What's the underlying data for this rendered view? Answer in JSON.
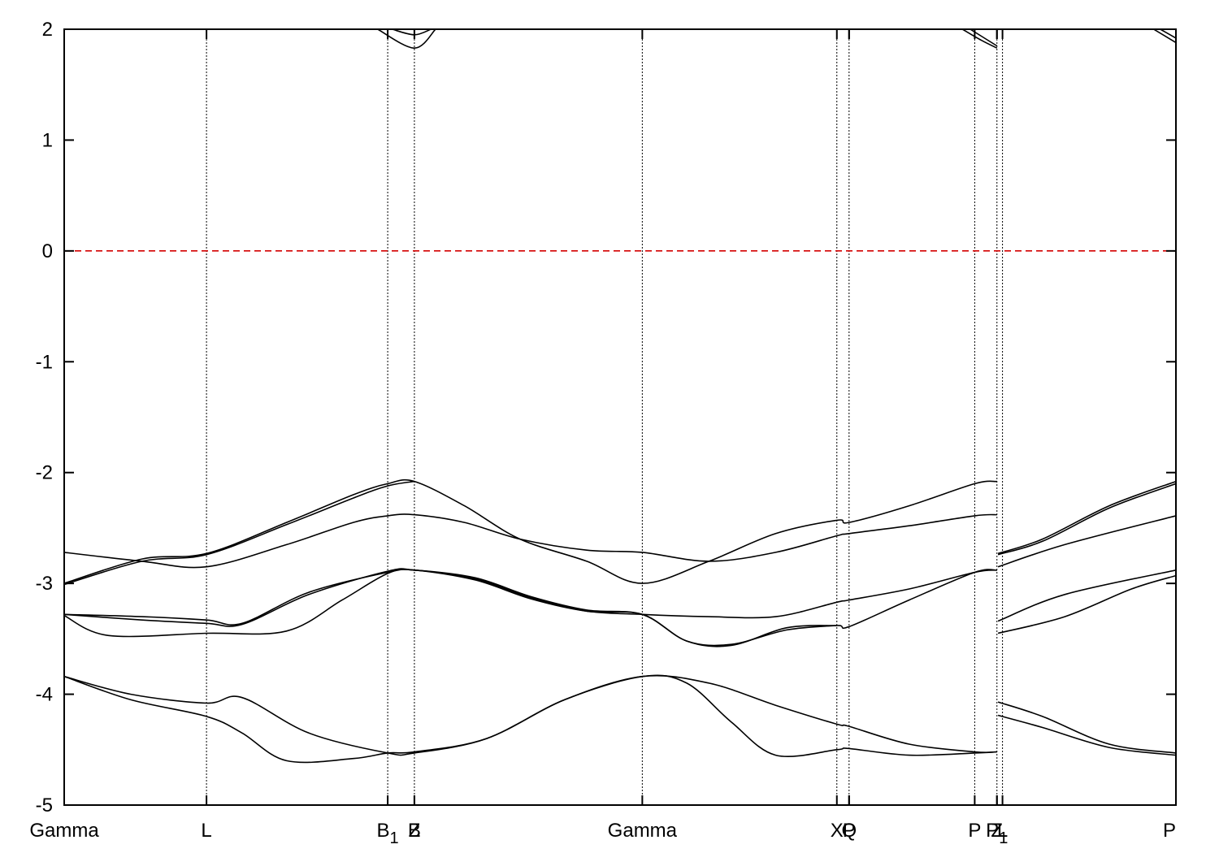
{
  "chart_data": {
    "type": "line",
    "title": "",
    "xlabel": "",
    "ylabel": "",
    "ylim": [
      -5,
      2
    ],
    "yticks": [
      -5,
      -4,
      -3,
      -2,
      -1,
      0,
      1,
      2
    ],
    "xlim": [
      0,
      100
    ],
    "kpoints": [
      {
        "label": "Gamma",
        "sub": "",
        "x": 0
      },
      {
        "label": "L",
        "sub": "",
        "x": 12.8
      },
      {
        "label": "B",
        "sub": "1",
        "x": 29.1
      },
      {
        "label": "B",
        "sub": "",
        "x": 31.5
      },
      {
        "label": "Z",
        "sub": "",
        "x": 31.5
      },
      {
        "label": "Gamma",
        "sub": "",
        "x": 52.0
      },
      {
        "label": "X",
        "sub": "",
        "x": 69.5
      },
      {
        "label": "P",
        "sub": "",
        "x": 70.6
      },
      {
        "label": "Q",
        "sub": "",
        "x": 70.6
      },
      {
        "label": "P",
        "sub": "",
        "x": 81.9
      },
      {
        "label": "Z",
        "sub": "",
        "x": 83.9
      },
      {
        "label": "L",
        "sub": "",
        "x": 84.4
      },
      {
        "label": "P",
        "sub": "1",
        "x": 83.9
      },
      {
        "label": "P",
        "sub": "",
        "x": 100
      }
    ],
    "fermi_level": 0,
    "grid": false,
    "series": [
      {
        "points": [
          [
            0,
            -3.0
          ],
          [
            7,
            -2.78
          ],
          [
            12.8,
            -2.73
          ],
          [
            20,
            -2.45
          ],
          [
            26,
            -2.2
          ],
          [
            29.1,
            -2.1
          ],
          [
            31.5,
            -2.08
          ],
          [
            36,
            -2.3
          ],
          [
            41,
            -2.6
          ],
          [
            47,
            -2.8
          ],
          [
            52,
            -3.0
          ],
          [
            58,
            -2.8
          ],
          [
            64,
            -2.55
          ],
          [
            69.5,
            -2.43
          ],
          [
            70.6,
            -2.45
          ],
          [
            76,
            -2.3
          ],
          [
            81.9,
            -2.1
          ],
          [
            83.9,
            -2.08
          ]
        ]
      },
      {
        "points": [
          [
            0,
            -3.01
          ],
          [
            7,
            -2.8
          ],
          [
            12.8,
            -2.74
          ],
          [
            20,
            -2.47
          ],
          [
            26,
            -2.23
          ],
          [
            29.1,
            -2.12
          ],
          [
            31.5,
            -2.08
          ]
        ]
      },
      {
        "points": [
          [
            0,
            -2.72
          ],
          [
            7,
            -2.8
          ],
          [
            12.8,
            -2.85
          ],
          [
            20,
            -2.65
          ],
          [
            26,
            -2.45
          ],
          [
            29.1,
            -2.39
          ],
          [
            31.5,
            -2.38
          ],
          [
            36,
            -2.45
          ],
          [
            41,
            -2.6
          ],
          [
            47,
            -2.7
          ],
          [
            52,
            -2.72
          ],
          [
            58,
            -2.8
          ],
          [
            64,
            -2.72
          ],
          [
            69.5,
            -2.57
          ],
          [
            70.6,
            -2.55
          ],
          [
            76,
            -2.48
          ],
          [
            81.9,
            -2.39
          ],
          [
            83.9,
            -2.38
          ]
        ]
      },
      {
        "points": [
          [
            0,
            -3.28
          ],
          [
            7,
            -3.33
          ],
          [
            12.8,
            -3.36
          ],
          [
            16,
            -3.37
          ],
          [
            22,
            -3.1
          ],
          [
            29.1,
            -2.89
          ],
          [
            31.5,
            -2.88
          ],
          [
            37,
            -2.95
          ],
          [
            42,
            -3.12
          ],
          [
            47,
            -3.24
          ],
          [
            52,
            -3.28
          ],
          [
            56,
            -3.52
          ],
          [
            60,
            -3.55
          ],
          [
            65,
            -3.42
          ],
          [
            69.5,
            -3.38
          ],
          [
            70.6,
            -3.39
          ],
          [
            76,
            -3.15
          ],
          [
            81.9,
            -2.9
          ],
          [
            83.9,
            -2.88
          ]
        ]
      },
      {
        "points": [
          [
            0,
            -3.29
          ],
          [
            4,
            -3.47
          ],
          [
            12.8,
            -3.45
          ],
          [
            20,
            -3.43
          ],
          [
            25,
            -3.15
          ],
          [
            29.1,
            -2.91
          ],
          [
            31.5,
            -2.88
          ],
          [
            37,
            -2.97
          ],
          [
            42,
            -3.14
          ],
          [
            47,
            -3.25
          ],
          [
            52,
            -3.28
          ],
          [
            58,
            -3.3
          ],
          [
            64,
            -3.3
          ],
          [
            69.5,
            -3.17
          ],
          [
            70.6,
            -3.15
          ],
          [
            76,
            -3.05
          ],
          [
            81.9,
            -2.9
          ],
          [
            83.9,
            -2.88
          ]
        ]
      },
      {
        "points": [
          [
            0,
            -3.28
          ],
          [
            7,
            -3.3
          ],
          [
            12.8,
            -3.33
          ],
          [
            16,
            -3.36
          ],
          [
            22,
            -3.08
          ],
          [
            29.1,
            -2.9
          ],
          [
            31.5,
            -2.88
          ],
          [
            37,
            -2.96
          ],
          [
            42,
            -3.13
          ],
          [
            47,
            -3.25
          ],
          [
            52,
            -3.28
          ],
          [
            56,
            -3.52
          ],
          [
            60,
            -3.56
          ],
          [
            65,
            -3.4
          ],
          [
            69.5,
            -3.38
          ]
        ]
      },
      {
        "points": [
          [
            0,
            -3.84
          ],
          [
            6,
            -4.0
          ],
          [
            12.8,
            -4.08
          ],
          [
            16,
            -4.03
          ],
          [
            22,
            -4.35
          ],
          [
            29.1,
            -4.53
          ],
          [
            31.5,
            -4.53
          ],
          [
            38,
            -4.4
          ],
          [
            45,
            -4.05
          ],
          [
            52,
            -3.84
          ],
          [
            58,
            -3.9
          ],
          [
            64,
            -4.1
          ],
          [
            69.5,
            -4.27
          ],
          [
            70.6,
            -4.29
          ],
          [
            76,
            -4.45
          ],
          [
            81.9,
            -4.52
          ],
          [
            83.9,
            -4.52
          ]
        ]
      },
      {
        "points": [
          [
            0,
            -3.84
          ],
          [
            6,
            -4.05
          ],
          [
            12.8,
            -4.2
          ],
          [
            16,
            -4.35
          ],
          [
            20,
            -4.6
          ],
          [
            26,
            -4.58
          ],
          [
            29.1,
            -4.53
          ],
          [
            31.5,
            -4.52
          ],
          [
            38,
            -4.4
          ],
          [
            45,
            -4.05
          ],
          [
            52,
            -3.84
          ],
          [
            56,
            -3.9
          ],
          [
            60,
            -4.25
          ],
          [
            64,
            -4.55
          ],
          [
            69.5,
            -4.5
          ],
          [
            70.6,
            -4.49
          ],
          [
            76,
            -4.55
          ],
          [
            81.9,
            -4.53
          ],
          [
            83.9,
            -4.52
          ]
        ]
      },
      {
        "points": [
          [
            84,
            -2.73
          ],
          [
            88,
            -2.6
          ],
          [
            94,
            -2.3
          ],
          [
            100,
            -2.08
          ]
        ]
      },
      {
        "points": [
          [
            84,
            -2.74
          ],
          [
            88,
            -2.62
          ],
          [
            94,
            -2.32
          ],
          [
            100,
            -2.1
          ]
        ]
      },
      {
        "points": [
          [
            84,
            -2.85
          ],
          [
            90,
            -2.65
          ],
          [
            100,
            -2.39
          ]
        ]
      },
      {
        "points": [
          [
            84,
            -3.34
          ],
          [
            90,
            -3.1
          ],
          [
            100,
            -2.88
          ]
        ]
      },
      {
        "points": [
          [
            84,
            -3.45
          ],
          [
            90,
            -3.3
          ],
          [
            96,
            -3.05
          ],
          [
            100,
            -2.93
          ]
        ]
      },
      {
        "points": [
          [
            84,
            -4.07
          ],
          [
            88,
            -4.2
          ],
          [
            94,
            -4.45
          ],
          [
            100,
            -4.53
          ]
        ]
      },
      {
        "points": [
          [
            84,
            -4.19
          ],
          [
            88,
            -4.3
          ],
          [
            94,
            -4.48
          ],
          [
            100,
            -4.55
          ]
        ]
      },
      {
        "points": [
          [
            28.2,
            2.0
          ],
          [
            31.5,
            1.83
          ],
          [
            33.4,
            2.0
          ]
        ]
      },
      {
        "points": [
          [
            29.5,
            2.0
          ],
          [
            31.5,
            1.95
          ],
          [
            33,
            2.0
          ]
        ]
      },
      {
        "points": [
          [
            80.8,
            2.0
          ],
          [
            82.5,
            1.9
          ],
          [
            83.9,
            1.83
          ]
        ]
      },
      {
        "points": [
          [
            81.5,
            2.0
          ],
          [
            83.9,
            1.85
          ]
        ]
      },
      {
        "points": [
          [
            98,
            2.0
          ],
          [
            100,
            1.88
          ]
        ]
      },
      {
        "points": [
          [
            98.6,
            2.0
          ],
          [
            100,
            1.92
          ]
        ]
      }
    ]
  }
}
